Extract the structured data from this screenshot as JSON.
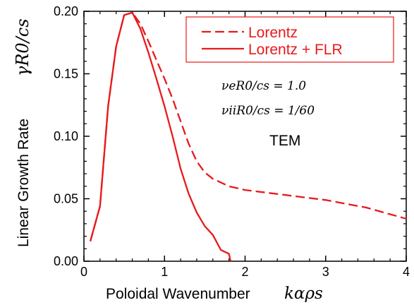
{
  "chart_data": {
    "type": "line",
    "xlabel": "Poloidal Wavenumber",
    "xlabel_symbol": "kαρs",
    "ylabel": "Linear Growth Rate",
    "ylabel_symbol": "γR0/cs",
    "xlim": [
      0,
      4
    ],
    "ylim": [
      0,
      0.2
    ],
    "x_ticks": [
      0,
      1,
      2,
      3,
      4
    ],
    "x_tick_labels": [
      "0",
      "1",
      "2",
      "3",
      "4"
    ],
    "y_ticks": [
      0,
      0.05,
      0.1,
      0.15,
      0.2
    ],
    "y_tick_labels": [
      "0.00",
      "0.05",
      "0.10",
      "0.15",
      "0.20"
    ],
    "grid": false,
    "legend_position": "top-right",
    "series": [
      {
        "name": "Lorentz",
        "style": "dashed",
        "color": "#e8191c",
        "x": [
          0.08,
          0.2,
          0.3,
          0.4,
          0.5,
          0.6,
          0.7,
          0.8,
          0.9,
          1.0,
          1.1,
          1.2,
          1.3,
          1.4,
          1.5,
          1.6,
          1.8,
          2.0,
          2.5,
          3.0,
          3.5,
          4.0
        ],
        "y": [
          0.016,
          0.044,
          0.124,
          0.172,
          0.197,
          0.199,
          0.19,
          0.176,
          0.161,
          0.146,
          0.13,
          0.112,
          0.094,
          0.08,
          0.071,
          0.066,
          0.06,
          0.057,
          0.053,
          0.049,
          0.043,
          0.034
        ]
      },
      {
        "name": "Lorentz + FLR",
        "style": "solid",
        "color": "#e8191c",
        "x": [
          0.08,
          0.2,
          0.3,
          0.4,
          0.5,
          0.6,
          0.7,
          0.8,
          0.9,
          1.0,
          1.1,
          1.2,
          1.3,
          1.4,
          1.5,
          1.6,
          1.7,
          1.8,
          1.82
        ],
        "y": [
          0.016,
          0.044,
          0.124,
          0.172,
          0.197,
          0.199,
          0.186,
          0.167,
          0.146,
          0.124,
          0.1,
          0.074,
          0.054,
          0.039,
          0.028,
          0.021,
          0.009,
          0.006,
          0.0
        ]
      }
    ],
    "annotations": [
      "νeR0/cs = 1.0",
      "νiiR0/cs = 1/60",
      "TEM"
    ]
  }
}
